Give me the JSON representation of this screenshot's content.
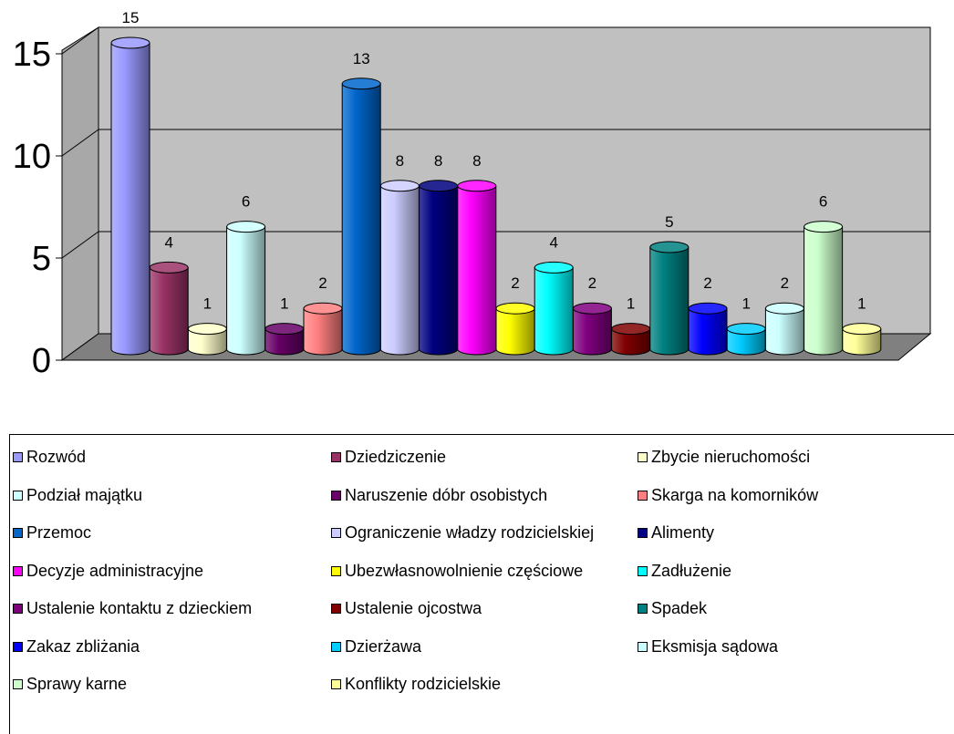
{
  "chart_data": {
    "type": "bar",
    "subtype": "3d-cylinder",
    "categories": [
      "Rozwód",
      "Dziedziczenie",
      "Zbycie nieruchomości",
      "Podział majątku",
      "Naruszenie dóbr osobistych",
      "Skarga na komorników",
      "Przemoc",
      "Ograniczenie władzy rodzicielskiej",
      "Alimenty",
      "Decyzje administracyjne",
      "Ubezwłasnowolnienie częściowe",
      "Zadłużenie",
      "Ustalenie kontaktu z dzieckiem",
      "Ustalenie ojcostwa",
      "Spadek",
      "Zakaz zbliżania",
      "Dzierżawa",
      "Eksmisja sądowa",
      "Sprawy karne",
      "Konflikty rodzicielskie"
    ],
    "values": [
      15,
      4,
      1,
      6,
      1,
      2,
      13,
      8,
      8,
      8,
      2,
      4,
      2,
      1,
      5,
      2,
      1,
      2,
      6,
      1
    ],
    "colors": [
      "#9999ff",
      "#993366",
      "#ffffcc",
      "#ccffff",
      "#660066",
      "#ff8080",
      "#0066cc",
      "#ccccff",
      "#000080",
      "#ff00ff",
      "#ffff00",
      "#00ffff",
      "#800080",
      "#800000",
      "#008080",
      "#0000ff",
      "#00ccff",
      "#ccffff",
      "#ccffcc",
      "#ffff99"
    ],
    "y_ticks": [
      "0",
      "5",
      "10",
      "15"
    ],
    "ylim": [
      0,
      15
    ],
    "grid": true,
    "wall_color": "#c0c0c0",
    "floor_color": "#808080",
    "legend_position": "bottom",
    "data_labels": true
  }
}
